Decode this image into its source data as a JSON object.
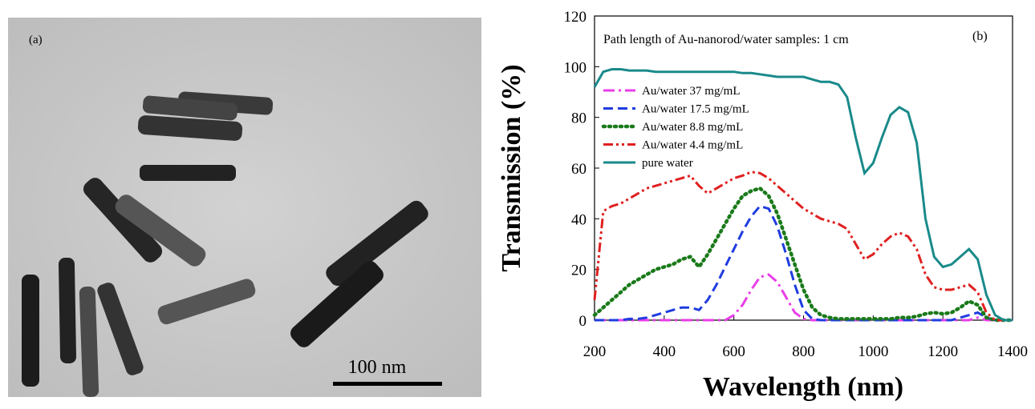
{
  "panel_a": {
    "label": "(a)",
    "scale_bar": "100 nm"
  },
  "chart_data": {
    "type": "line",
    "annotation": "Path length of Au-nanorod/water samples: 1 cm",
    "panel_label": "(b)",
    "xlabel": "Wavelength (nm)",
    "ylabel": "Transmission (%)",
    "x": [
      200,
      225,
      250,
      275,
      300,
      325,
      350,
      375,
      400,
      425,
      450,
      475,
      500,
      525,
      550,
      575,
      600,
      625,
      650,
      675,
      700,
      725,
      750,
      775,
      800,
      825,
      850,
      875,
      900,
      925,
      950,
      975,
      1000,
      1025,
      1050,
      1075,
      1100,
      1125,
      1150,
      1175,
      1200,
      1225,
      1250,
      1275,
      1300,
      1325,
      1350,
      1375,
      1400
    ],
    "xlim": [
      200,
      1400
    ],
    "xticks": [
      200,
      400,
      600,
      800,
      1000,
      1200,
      1400
    ],
    "ylim": [
      0,
      120
    ],
    "yticks": [
      0,
      20,
      40,
      60,
      80,
      100,
      120
    ],
    "series": [
      {
        "name": "Au/water  37 mg/mL",
        "color": "#e83ee8",
        "style": "dashdot",
        "values": [
          0,
          0,
          0,
          0,
          0,
          0,
          0,
          0,
          0,
          0,
          0,
          0,
          0,
          0,
          0,
          0,
          2,
          6,
          12,
          17,
          18,
          15,
          9,
          3,
          0.5,
          0,
          0,
          0,
          0,
          0,
          0,
          0,
          0,
          0,
          0,
          0,
          0,
          0,
          0,
          0,
          0,
          0,
          0,
          0,
          1,
          0,
          0,
          0,
          0
        ]
      },
      {
        "name": "Au/water  17.5 mg/mL",
        "color": "#1f3ce0",
        "style": "dash",
        "values": [
          0,
          0,
          0,
          0,
          0.5,
          0.5,
          1,
          2,
          3,
          4,
          5,
          5,
          4,
          8,
          14,
          21,
          28,
          35,
          41,
          45,
          44,
          37,
          26,
          14,
          4,
          0.5,
          0,
          0,
          0,
          0,
          0,
          0,
          0,
          0,
          0,
          0,
          0,
          0,
          0,
          0,
          0,
          0,
          1,
          2,
          3,
          1,
          0,
          0,
          0
        ]
      },
      {
        "name": "Au/water  8.8 mg/mL",
        "color": "#1a7a1a",
        "style": "dot",
        "values": [
          2,
          5,
          8,
          11,
          14,
          16,
          18,
          20,
          21,
          22,
          24,
          25,
          21,
          26,
          32,
          38,
          44,
          49,
          51,
          52,
          49,
          42,
          32,
          22,
          12,
          5,
          2,
          1,
          0.5,
          0.5,
          0.5,
          0.5,
          0.5,
          0.5,
          0.5,
          1,
          1,
          1.5,
          2.5,
          3,
          2.5,
          3,
          5,
          7.5,
          6,
          1,
          0,
          0,
          0
        ]
      },
      {
        "name": "Au/water  4.4 mg/mL",
        "color": "#e02020",
        "style": "dashdotdot",
        "values": [
          8,
          43,
          45,
          46,
          48,
          50,
          52,
          53,
          54,
          55,
          56,
          57,
          53,
          50,
          52,
          54,
          56,
          57,
          58.5,
          58,
          56,
          53,
          50,
          47,
          44,
          42,
          40,
          39,
          38,
          36,
          30,
          24,
          26,
          30,
          33,
          34.5,
          33,
          28,
          18,
          13,
          12,
          12,
          13,
          14,
          11,
          3,
          0,
          0,
          0
        ]
      },
      {
        "name": "pure water",
        "color": "#1a8a8a",
        "style": "solid",
        "values": [
          92,
          98,
          99,
          99,
          98.5,
          98.5,
          98.5,
          98,
          98,
          98,
          98,
          98,
          98,
          98,
          98,
          98,
          98,
          97.5,
          97.5,
          97,
          96.5,
          96,
          96,
          96,
          96,
          95,
          94,
          94,
          93,
          88,
          72,
          58,
          62,
          72,
          81,
          84,
          82,
          70,
          40,
          25,
          21,
          22,
          25,
          28,
          24,
          10,
          2,
          0,
          0
        ]
      }
    ]
  }
}
